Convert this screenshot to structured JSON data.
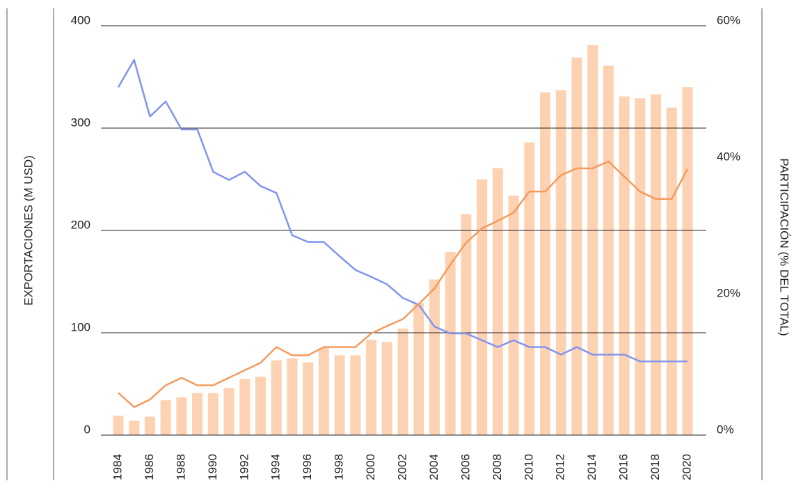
{
  "chart_data": {
    "type": "bar",
    "y_label": "EXPORTACIONES (M USD)",
    "y2_label": "PARTICIPACIÓN (% DEL TOTAL)",
    "categories": [
      "1984",
      null,
      "1986",
      null,
      "1988",
      null,
      "1990",
      null,
      "1992",
      null,
      "1994",
      null,
      "1996",
      null,
      "1998",
      null,
      "2000",
      null,
      "2002",
      null,
      "2004",
      null,
      "2006",
      null,
      "2008",
      null,
      "2010",
      null,
      "2012",
      null,
      "2014",
      null,
      "2016",
      null,
      "2018",
      null,
      "2020"
    ],
    "series": [
      {
        "type": "bar",
        "color": "#fdd2b2",
        "values": [
          19,
          14,
          18,
          34,
          37,
          41,
          41,
          46,
          55,
          57,
          73,
          75,
          71,
          85,
          78,
          78,
          93,
          91,
          104,
          129,
          152,
          179,
          216,
          250,
          261,
          234,
          286,
          335,
          337,
          369,
          381,
          361,
          331,
          329,
          333,
          320,
          340
        ]
      },
      {
        "type": "line",
        "axis": "y2",
        "color": "#8094f0",
        "values": [
          51,
          55,
          46.7,
          48.9,
          44.8,
          44.8,
          38.6,
          37.4,
          38.6,
          36.5,
          35.5,
          29.3,
          28.3,
          28.3,
          26.2,
          24.2,
          23.2,
          22.1,
          20.1,
          19.1,
          15.9,
          14.9,
          14.9,
          13.9,
          12.9,
          13.9,
          12.9,
          12.9,
          11.8,
          12.9,
          11.8,
          11.8,
          11.8,
          10.8,
          10.8,
          10.8,
          10.8
        ]
      },
      {
        "type": "line",
        "axis": "y2",
        "color": "#f59a5c",
        "values": [
          6.2,
          4.1,
          5.2,
          7.3,
          8.4,
          7.3,
          7.3,
          8.4,
          9.5,
          10.6,
          12.9,
          11.7,
          11.7,
          12.9,
          12.9,
          12.9,
          14.9,
          16,
          17,
          19.2,
          21.5,
          25,
          28.2,
          30.3,
          31.4,
          32.6,
          35.7,
          35.7,
          38.1,
          39.1,
          39.1,
          40.1,
          37.9,
          35.7,
          34.6,
          34.6,
          39
        ]
      }
    ],
    "ylim": [
      0,
      400
    ],
    "yticks": [
      0,
      100,
      200,
      300,
      400
    ],
    "y2lim": [
      0,
      60
    ],
    "y2ticks": [
      {
        "value": 0,
        "label": "0%"
      },
      {
        "value": 20,
        "label": "20%"
      },
      {
        "value": 40,
        "label": "40%"
      },
      {
        "value": 60,
        "label": "60%"
      }
    ],
    "grid": true
  }
}
